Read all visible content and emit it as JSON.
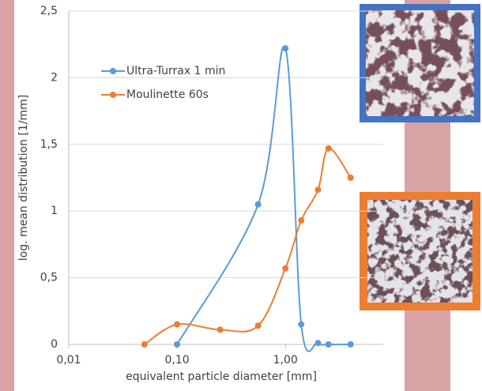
{
  "chart_data": {
    "type": "line",
    "x_label": "equivalent particle diameter [mm]",
    "y_label": "log. mean distribution [1/mm]",
    "log_x": true,
    "grid": true,
    "legend": "upper-left",
    "xlim": [
      0.01,
      8
    ],
    "ylim": [
      0,
      2.5
    ],
    "xticks": [
      {
        "value": 0.01,
        "label": "0,01"
      },
      {
        "value": 0.1,
        "label": "0,10"
      },
      {
        "value": 1,
        "label": "1,00"
      }
    ],
    "yticks": [
      0,
      {
        "value": 0.5,
        "label": "0,5"
      },
      1,
      {
        "value": 1.5,
        "label": "1,5"
      },
      2,
      {
        "value": 2.5,
        "label": "2,5"
      }
    ],
    "series": [
      {
        "name": "Ultra-Turrax 1 min",
        "color": "#5b9bd5",
        "x": [
          0.1,
          0.56,
          1.0,
          1.4,
          2.0,
          2.5,
          4.0
        ],
        "values": [
          0,
          1.05,
          2.22,
          0.15,
          0.01,
          0,
          0
        ]
      },
      {
        "name": "Moulinette 60s",
        "color": "#ed7d31",
        "x": [
          0.05,
          0.1,
          0.25,
          0.56,
          1.0,
          1.4,
          2.0,
          2.5,
          4.0
        ],
        "values": [
          0,
          0.15,
          0.11,
          0.14,
          0.57,
          0.93,
          1.16,
          1.47,
          1.25
        ]
      }
    ]
  }
}
